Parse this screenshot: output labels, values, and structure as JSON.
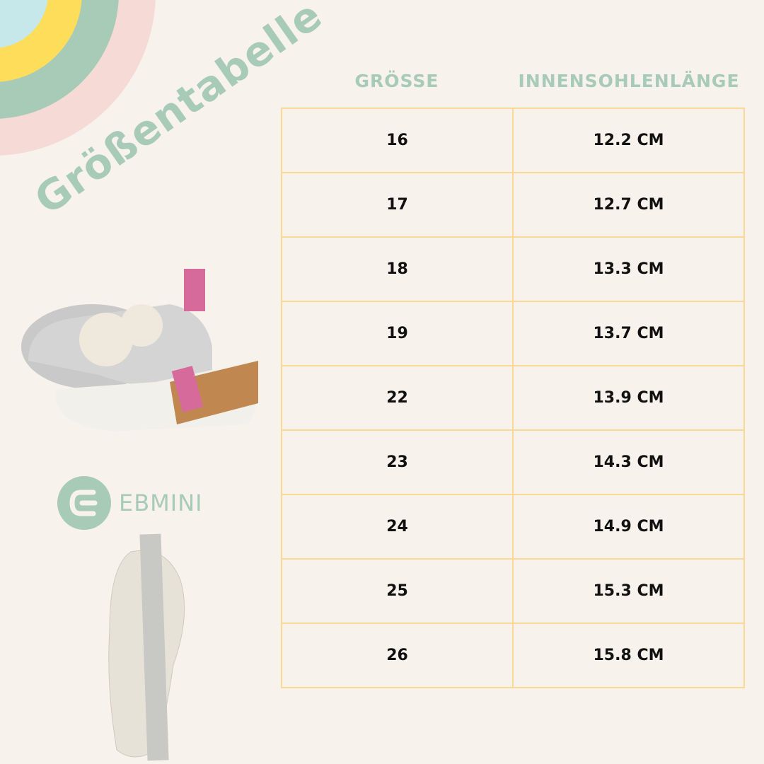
{
  "title": "Größentabelle",
  "table": {
    "headers": [
      "GRÖSSE",
      "INNENSOHLENLÄNGE"
    ],
    "rows": [
      [
        "16",
        "12.2 CM"
      ],
      [
        "17",
        "12.7 CM"
      ],
      [
        "18",
        "13.3 CM"
      ],
      [
        "19",
        "13.7 CM"
      ],
      [
        "22",
        "13.9 CM"
      ],
      [
        "23",
        "14.3 CM"
      ],
      [
        "24",
        "14.9 CM"
      ],
      [
        "25",
        "15.3 CM"
      ],
      [
        "26",
        "15.8 CM"
      ]
    ]
  },
  "brand": {
    "name": "EBMINI"
  },
  "colors": {
    "accent": "#a8cbb8",
    "border": "#fbd896",
    "background": "#f7f2ec",
    "rainbow": [
      "#c7e8ea",
      "#fedd5b",
      "#a8cbb8",
      "#f6dad5"
    ]
  }
}
